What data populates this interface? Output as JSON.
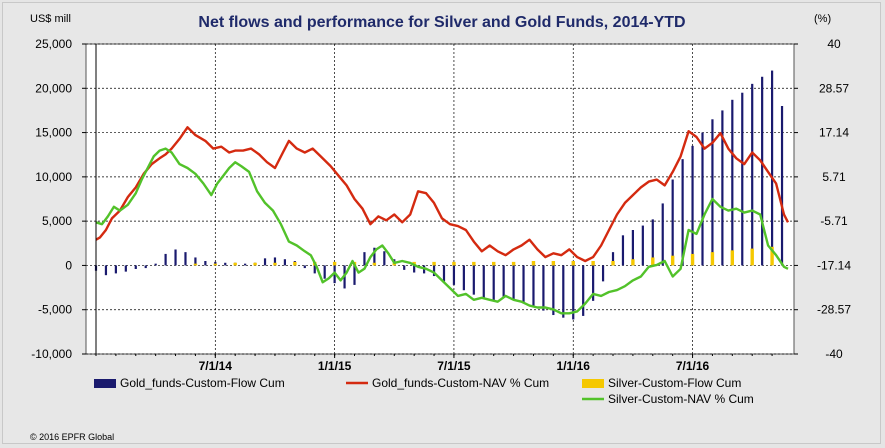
{
  "chart_data": {
    "type": "bar+line",
    "title": "Net flows and performance for Silver and Gold Funds, 2014-YTD",
    "left_axis_unit": "US$ mill",
    "right_axis_unit": "(%)",
    "left_ylim": [
      -10000,
      25000
    ],
    "right_ylim": [
      -40,
      40
    ],
    "left_ticks": [
      "25,000",
      "20,000",
      "15,000",
      "10,000",
      "5,000",
      "0",
      "-5,000",
      "-10,000"
    ],
    "left_tick_values": [
      25000,
      20000,
      15000,
      10000,
      5000,
      0,
      -5000,
      -10000
    ],
    "right_ticks": [
      "40",
      "28.57",
      "17.14",
      "5.71",
      "-5.71",
      "-17.14",
      "-28.57",
      "-40"
    ],
    "right_tick_values": [
      40,
      28.57,
      17.14,
      5.71,
      -5.71,
      -17.14,
      -28.57,
      -40
    ],
    "x_ticks": [
      "7/1/14",
      "1/1/15",
      "7/1/15",
      "1/1/16",
      "7/1/16"
    ],
    "x_tick_positions": [
      6,
      12,
      18,
      24,
      30
    ],
    "x_range": [
      0,
      34.8
    ],
    "grid": true,
    "copyright": "© 2016 EPFR Global",
    "series": [
      {
        "name": "Gold_funds-Custom-Flow Cum",
        "kind": "bar",
        "axis": "left",
        "color": "#1a1a6e",
        "points": [
          [
            0,
            -600
          ],
          [
            0.5,
            -1100
          ],
          [
            1,
            -900
          ],
          [
            1.5,
            -700
          ],
          [
            2,
            -400
          ],
          [
            2.5,
            -300
          ],
          [
            3,
            200
          ],
          [
            3.5,
            1300
          ],
          [
            4,
            1800
          ],
          [
            4.5,
            1500
          ],
          [
            5,
            900
          ],
          [
            5.5,
            500
          ],
          [
            6,
            400
          ],
          [
            6.5,
            300
          ],
          [
            7,
            300
          ],
          [
            7.5,
            200
          ],
          [
            8,
            300
          ],
          [
            8.5,
            800
          ],
          [
            9,
            900
          ],
          [
            9.5,
            700
          ],
          [
            10,
            500
          ],
          [
            10.5,
            -300
          ],
          [
            11,
            -900
          ],
          [
            11.5,
            -1500
          ],
          [
            12,
            -2000
          ],
          [
            12.5,
            -2600
          ],
          [
            13,
            -2200
          ],
          [
            13.5,
            1500
          ],
          [
            14,
            2000
          ],
          [
            14.5,
            1600
          ],
          [
            15,
            700
          ],
          [
            15.5,
            -500
          ],
          [
            16,
            -800
          ],
          [
            16.5,
            -900
          ],
          [
            17,
            -1200
          ],
          [
            17.5,
            -1800
          ],
          [
            18,
            -2200
          ],
          [
            18.5,
            -2800
          ],
          [
            19,
            -3300
          ],
          [
            19.5,
            -3700
          ],
          [
            20,
            -3900
          ],
          [
            20.5,
            -3600
          ],
          [
            21,
            -3900
          ],
          [
            21.5,
            -4300
          ],
          [
            22,
            -4700
          ],
          [
            22.5,
            -5100
          ],
          [
            23,
            -5600
          ],
          [
            23.5,
            -5900
          ],
          [
            24,
            -6100
          ],
          [
            24.5,
            -5700
          ],
          [
            25,
            -4000
          ],
          [
            25.5,
            -1800
          ],
          [
            26,
            1500
          ],
          [
            26.5,
            3400
          ],
          [
            27,
            4000
          ],
          [
            27.5,
            4500
          ],
          [
            28,
            5200
          ],
          [
            28.5,
            7000
          ],
          [
            29,
            9700
          ],
          [
            29.5,
            12000
          ],
          [
            30,
            13500
          ],
          [
            30.5,
            15000
          ],
          [
            31,
            16500
          ],
          [
            31.5,
            17500
          ],
          [
            32,
            18700
          ],
          [
            32.5,
            19500
          ],
          [
            33,
            20500
          ],
          [
            33.5,
            21300
          ],
          [
            34,
            22000
          ],
          [
            34.5,
            18000
          ]
        ]
      },
      {
        "name": "Silver-Custom-Flow Cum",
        "kind": "bar",
        "axis": "left",
        "color": "#f5c800",
        "points": [
          [
            0,
            0
          ],
          [
            1,
            0
          ],
          [
            2,
            0
          ],
          [
            3,
            0
          ],
          [
            4,
            0
          ],
          [
            5,
            200
          ],
          [
            6,
            200
          ],
          [
            7,
            300
          ],
          [
            8,
            300
          ],
          [
            9,
            300
          ],
          [
            10,
            400
          ],
          [
            11,
            400
          ],
          [
            12,
            400
          ],
          [
            13,
            400
          ],
          [
            14,
            300
          ],
          [
            15,
            300
          ],
          [
            16,
            400
          ],
          [
            17,
            400
          ],
          [
            18,
            400
          ],
          [
            19,
            400
          ],
          [
            20,
            400
          ],
          [
            21,
            400
          ],
          [
            22,
            500
          ],
          [
            23,
            500
          ],
          [
            24,
            500
          ],
          [
            25,
            500
          ],
          [
            26,
            500
          ],
          [
            27,
            700
          ],
          [
            28,
            900
          ],
          [
            29,
            1100
          ],
          [
            30,
            1300
          ],
          [
            31,
            1500
          ],
          [
            32,
            1700
          ],
          [
            33,
            1900
          ],
          [
            34,
            2100
          ]
        ]
      },
      {
        "name": "Gold_funds-Custom-NAV % Cum",
        "kind": "line",
        "axis": "right",
        "color": "#d42a10",
        "points": [
          [
            0,
            -10.5
          ],
          [
            0.2,
            -9.9
          ],
          [
            0.5,
            -8
          ],
          [
            0.8,
            -5
          ],
          [
            1.2,
            -3
          ],
          [
            1.6,
            0.5
          ],
          [
            2,
            3
          ],
          [
            2.4,
            6.5
          ],
          [
            2.8,
            9
          ],
          [
            3.2,
            10.5
          ],
          [
            3.5,
            11.5
          ],
          [
            3.8,
            13
          ],
          [
            4.2,
            15.5
          ],
          [
            4.6,
            18.5
          ],
          [
            5,
            16.5
          ],
          [
            5.5,
            15
          ],
          [
            5.9,
            13
          ],
          [
            6.3,
            13.5
          ],
          [
            6.7,
            12
          ],
          [
            7,
            12.5
          ],
          [
            7.4,
            12.5
          ],
          [
            7.8,
            13
          ],
          [
            8.2,
            11.5
          ],
          [
            8.6,
            9.5
          ],
          [
            9,
            8
          ],
          [
            9.4,
            12
          ],
          [
            9.7,
            15
          ],
          [
            10.1,
            13
          ],
          [
            10.5,
            12
          ],
          [
            10.9,
            13
          ],
          [
            11.3,
            11
          ],
          [
            11.8,
            8.5
          ],
          [
            12.2,
            6
          ],
          [
            12.6,
            3.5
          ],
          [
            13,
            0
          ],
          [
            13.4,
            -2.5
          ],
          [
            13.8,
            -6.5
          ],
          [
            14.2,
            -4.5
          ],
          [
            14.6,
            -5.5
          ],
          [
            15,
            -4
          ],
          [
            15.4,
            -6
          ],
          [
            15.8,
            -4
          ],
          [
            16.2,
            2
          ],
          [
            16.6,
            1.5
          ],
          [
            17,
            -1
          ],
          [
            17.4,
            -5
          ],
          [
            17.8,
            -6.5
          ],
          [
            18.2,
            -7
          ],
          [
            18.6,
            -8
          ],
          [
            19,
            -11
          ],
          [
            19.4,
            -13.5
          ],
          [
            19.8,
            -12
          ],
          [
            20.2,
            -13.5
          ],
          [
            20.6,
            -14.5
          ],
          [
            21,
            -13
          ],
          [
            21.4,
            -12
          ],
          [
            21.8,
            -10.5
          ],
          [
            22.2,
            -13
          ],
          [
            22.6,
            -15
          ],
          [
            23,
            -14
          ],
          [
            23.4,
            -14.5
          ],
          [
            23.8,
            -13
          ],
          [
            24.2,
            -15
          ],
          [
            24.6,
            -16
          ],
          [
            25,
            -15
          ],
          [
            25.4,
            -12
          ],
          [
            25.8,
            -8
          ],
          [
            26.2,
            -4
          ],
          [
            26.6,
            -1
          ],
          [
            27,
            1
          ],
          [
            27.4,
            3
          ],
          [
            27.8,
            4.5
          ],
          [
            28.2,
            5
          ],
          [
            28.6,
            3.5
          ],
          [
            29,
            7
          ],
          [
            29.4,
            11
          ],
          [
            29.8,
            17.5
          ],
          [
            30.2,
            16
          ],
          [
            30.6,
            13
          ],
          [
            31,
            14.5
          ],
          [
            31.4,
            17
          ],
          [
            31.8,
            13
          ],
          [
            32.2,
            10.5
          ],
          [
            32.6,
            9
          ],
          [
            33,
            12
          ],
          [
            33.4,
            10
          ],
          [
            33.8,
            7
          ],
          [
            34.2,
            4
          ],
          [
            34.6,
            -4
          ],
          [
            34.8,
            -6
          ]
        ]
      },
      {
        "name": "Silver-Custom-NAV % Cum",
        "kind": "line",
        "axis": "right",
        "color": "#52c22a",
        "points": [
          [
            0,
            -6
          ],
          [
            0.3,
            -6.5
          ],
          [
            0.6,
            -4.5
          ],
          [
            0.9,
            -2
          ],
          [
            1.2,
            -3
          ],
          [
            1.6,
            -1.5
          ],
          [
            2,
            1.5
          ],
          [
            2.3,
            5
          ],
          [
            2.6,
            8
          ],
          [
            2.9,
            11
          ],
          [
            3.2,
            12.5
          ],
          [
            3.5,
            13
          ],
          [
            3.8,
            12
          ],
          [
            4.2,
            9
          ],
          [
            4.6,
            8
          ],
          [
            5,
            6.5
          ],
          [
            5.4,
            4
          ],
          [
            5.8,
            1
          ],
          [
            6.1,
            4
          ],
          [
            6.4,
            6
          ],
          [
            6.7,
            8
          ],
          [
            7,
            9.5
          ],
          [
            7.3,
            8.5
          ],
          [
            7.7,
            7
          ],
          [
            8.1,
            2
          ],
          [
            8.5,
            -1
          ],
          [
            8.9,
            -3
          ],
          [
            9.3,
            -6.5
          ],
          [
            9.7,
            -11
          ],
          [
            10.1,
            -12
          ],
          [
            10.5,
            -13.5
          ],
          [
            10.8,
            -14.5
          ],
          [
            11.1,
            -17.5
          ],
          [
            11.4,
            -21.5
          ],
          [
            11.7,
            -20.5
          ],
          [
            12,
            -19
          ],
          [
            12.3,
            -21
          ],
          [
            12.6,
            -19
          ],
          [
            12.9,
            -16
          ],
          [
            13.2,
            -19
          ],
          [
            13.5,
            -18
          ],
          [
            13.8,
            -15
          ],
          [
            14.1,
            -13
          ],
          [
            14.4,
            -12
          ],
          [
            14.7,
            -14
          ],
          [
            15,
            -16.5
          ],
          [
            15.4,
            -16
          ],
          [
            15.8,
            -16.5
          ],
          [
            16.2,
            -17.5
          ],
          [
            16.6,
            -18
          ],
          [
            17,
            -19
          ],
          [
            17.4,
            -21
          ],
          [
            17.8,
            -23
          ],
          [
            18.2,
            -25
          ],
          [
            18.6,
            -24.5
          ],
          [
            19,
            -26
          ],
          [
            19.4,
            -25.5
          ],
          [
            19.8,
            -26
          ],
          [
            20.2,
            -26.5
          ],
          [
            20.6,
            -25
          ],
          [
            21,
            -26
          ],
          [
            21.4,
            -26.5
          ],
          [
            21.8,
            -27.5
          ],
          [
            22.2,
            -28
          ],
          [
            22.6,
            -28
          ],
          [
            23,
            -28.5
          ],
          [
            23.4,
            -29.5
          ],
          [
            23.8,
            -29.5
          ],
          [
            24.2,
            -29
          ],
          [
            24.6,
            -27
          ],
          [
            25,
            -24.5
          ],
          [
            25.4,
            -25
          ],
          [
            25.8,
            -24
          ],
          [
            26.2,
            -23.5
          ],
          [
            26.6,
            -22.5
          ],
          [
            27,
            -21
          ],
          [
            27.4,
            -20
          ],
          [
            27.8,
            -17.5
          ],
          [
            28.2,
            -17
          ],
          [
            28.6,
            -16
          ],
          [
            29,
            -20
          ],
          [
            29.4,
            -18
          ],
          [
            29.8,
            -8
          ],
          [
            30.2,
            -9
          ],
          [
            30.6,
            -4
          ],
          [
            31,
            0
          ],
          [
            31.4,
            -2
          ],
          [
            31.8,
            -3
          ],
          [
            32.2,
            -2.5
          ],
          [
            32.6,
            -3.5
          ],
          [
            33,
            -3
          ],
          [
            33.4,
            -4
          ],
          [
            33.8,
            -12
          ],
          [
            34.2,
            -14.5
          ],
          [
            34.6,
            -17.5
          ],
          [
            34.8,
            -18
          ]
        ]
      }
    ]
  }
}
